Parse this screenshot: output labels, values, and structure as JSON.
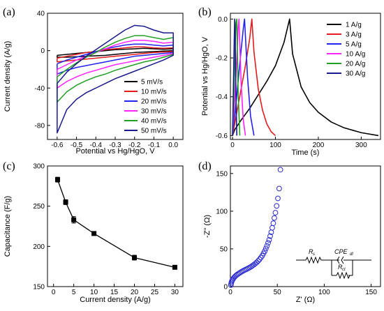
{
  "chart_data": [
    {
      "panel": "(a)",
      "type": "line",
      "xlabel": "Potential vs Hg/HgO, V",
      "ylabel": "Current density (A/g)",
      "xlim": [
        -0.65,
        0.05
      ],
      "ylim": [
        -95,
        40
      ],
      "xticks": [
        "-0.6",
        "-0.5",
        "-0.4",
        "-0.3",
        "-0.2",
        "-0.1",
        "0.0"
      ],
      "yticks": [
        "40",
        "0",
        "-40",
        "-80"
      ],
      "legend": "bottom-right",
      "x_grid": [
        -0.6,
        -0.55,
        -0.5,
        -0.45,
        -0.4,
        -0.35,
        -0.3,
        -0.25,
        -0.2,
        -0.15,
        -0.1,
        -0.05,
        0.0
      ],
      "series": [
        {
          "name": "5 mV/s",
          "color": "#000000",
          "anodic": [
            -5,
            -4,
            -3,
            -2,
            -1,
            0,
            1,
            1.5,
            2,
            2.5,
            2,
            1.5,
            2
          ],
          "cathodic": [
            -7,
            -7,
            -6.5,
            -6,
            -5.5,
            -5,
            -4,
            -3,
            -2,
            -1.5,
            -1,
            -0.5,
            0
          ]
        },
        {
          "name": "10 mV/s",
          "color": "#e41a1c",
          "anodic": [
            -8,
            -6,
            -4,
            -2,
            -1,
            1,
            2,
            3,
            4,
            4,
            3,
            2.5,
            3
          ],
          "cathodic": [
            -12,
            -11,
            -10,
            -9,
            -8,
            -7,
            -6,
            -5,
            -4,
            -3,
            -2,
            -1.5,
            -1
          ]
        },
        {
          "name": "20 mV/s",
          "color": "#2222ee",
          "anodic": [
            -14,
            -10,
            -7,
            -4,
            -1,
            2,
            4,
            6,
            7,
            7,
            6,
            5,
            6
          ],
          "cathodic": [
            -25,
            -21,
            -18,
            -16,
            -14,
            -12,
            -10,
            -8,
            -6,
            -5,
            -4,
            -3,
            -2
          ]
        },
        {
          "name": "30 mV/s",
          "color": "#ff22ff",
          "anodic": [
            -20,
            -15,
            -10,
            -6,
            -2,
            2,
            6,
            9,
            11,
            11,
            10,
            8,
            9
          ],
          "cathodic": [
            -40,
            -33,
            -28,
            -24,
            -21,
            -18,
            -15,
            -13,
            -11,
            -9,
            -7,
            -5,
            -3
          ]
        },
        {
          "name": "40 mV/s",
          "color": "#22a022",
          "anodic": [
            -28,
            -20,
            -13,
            -7,
            -2,
            4,
            9,
            13,
            16,
            16,
            14,
            12,
            14
          ],
          "cathodic": [
            -55,
            -44,
            -37,
            -32,
            -28,
            -25,
            -21,
            -18,
            -15,
            -12,
            -10,
            -7,
            -4
          ]
        },
        {
          "name": "50 mV/s",
          "color": "#1a1a8c",
          "anodic": [
            -35,
            -23,
            -14,
            -6,
            1,
            8,
            15,
            22,
            27,
            26,
            22,
            19,
            19
          ],
          "cathodic": [
            -88,
            -63,
            -52,
            -45,
            -40,
            -35,
            -30,
            -26,
            -22,
            -18,
            -14,
            -10,
            -5
          ]
        }
      ]
    },
    {
      "panel": "(b)",
      "type": "line",
      "xlabel": "Time (s)",
      "ylabel": "Potential vs Hg/HgO, V",
      "xlim": [
        -5,
        345
      ],
      "ylim": [
        -0.62,
        0.03
      ],
      "xticks": [
        "0",
        "100",
        "200",
        "300"
      ],
      "yticks": [
        "0.0",
        "-0.2",
        "-0.4",
        "-0.6"
      ],
      "legend": "top-right",
      "series": [
        {
          "name": "1 A/g",
          "color": "#000000",
          "x": [
            0,
            5,
            20,
            40,
            60,
            80,
            100,
            120,
            133,
            140,
            160,
            180,
            200,
            230,
            260,
            300,
            340
          ],
          "y": [
            -0.6,
            -0.57,
            -0.52,
            -0.46,
            -0.39,
            -0.32,
            -0.24,
            -0.12,
            0.0,
            -0.18,
            -0.35,
            -0.43,
            -0.48,
            -0.53,
            -0.56,
            -0.585,
            -0.6
          ]
        },
        {
          "name": "3 A/g",
          "color": "#e41a1c",
          "x": [
            0,
            10,
            20,
            30,
            40,
            45,
            50,
            60,
            70,
            80,
            90,
            100
          ],
          "y": [
            -0.6,
            -0.48,
            -0.36,
            -0.24,
            -0.1,
            0.0,
            -0.17,
            -0.36,
            -0.47,
            -0.54,
            -0.58,
            -0.6
          ]
        },
        {
          "name": "5 A/g",
          "color": "#2222ee",
          "x": [
            0,
            7,
            13,
            20,
            25,
            28,
            35,
            42,
            50
          ],
          "y": [
            -0.6,
            -0.46,
            -0.32,
            -0.16,
            -0.05,
            0.0,
            -0.3,
            -0.5,
            -0.6
          ]
        },
        {
          "name": "10 A/g",
          "color": "#ff22ff",
          "x": [
            0,
            5,
            10,
            13,
            15,
            20,
            25,
            30
          ],
          "y": [
            -0.6,
            -0.42,
            -0.2,
            -0.05,
            0.0,
            -0.33,
            -0.52,
            -0.6
          ]
        },
        {
          "name": "20 A/g",
          "color": "#22a022",
          "x": [
            0,
            3,
            6,
            8,
            10,
            13,
            17
          ],
          "y": [
            -0.6,
            -0.4,
            -0.15,
            -0.02,
            0.0,
            -0.38,
            -0.6
          ]
        },
        {
          "name": "30 A/g",
          "color": "#1a1a8c",
          "x": [
            0,
            2,
            4,
            5,
            6,
            8,
            10
          ],
          "y": [
            -0.6,
            -0.35,
            -0.1,
            0.0,
            -0.05,
            -0.4,
            -0.6
          ]
        }
      ]
    },
    {
      "panel": "(c)",
      "type": "line",
      "xlabel": "Current density (A/g)",
      "ylabel": "Capacitance (F/g)",
      "xlim": [
        -1.5,
        32
      ],
      "ylim": [
        150,
        300
      ],
      "xticks": [
        "0",
        "5",
        "10",
        "15",
        "20",
        "25",
        "30"
      ],
      "yticks": [
        "150",
        "200",
        "250",
        "300"
      ],
      "series": [
        {
          "name": "",
          "color": "#000000",
          "x": [
            1,
            3,
            5,
            10,
            20,
            30
          ],
          "y": [
            283,
            255,
            233,
            216,
            186,
            174
          ],
          "err": [
            3,
            3,
            4,
            2,
            3,
            2
          ]
        }
      ]
    },
    {
      "panel": "(d)",
      "type": "scatter",
      "xlabel": "Z' (Ω)",
      "ylabel": "-Z'' (Ω)",
      "xlim": [
        0,
        160
      ],
      "ylim": [
        0,
        160
      ],
      "xticks": [
        "0",
        "50",
        "100",
        "150"
      ],
      "yticks": [
        "0",
        "50",
        "100",
        "150"
      ],
      "circuit_labels": [
        "R",
        "s",
        "CPE",
        "dl",
        "R",
        "ct"
      ],
      "series": [
        {
          "name": "",
          "color": "#2a2ad4",
          "x": [
            0.5,
            0.8,
            1.2,
            1.8,
            2.5,
            3.3,
            4.2,
            5.2,
            6.3,
            7.5,
            8.8,
            10.2,
            11.6,
            13.0,
            14.5,
            16.0,
            17.5,
            19.0,
            20.5,
            22.0,
            23.5,
            25.0,
            26.5,
            28.0,
            29.5,
            31.0,
            32.5,
            34.0,
            35.3,
            36.6,
            37.8,
            39.0,
            40.2,
            41.3,
            42.4,
            43.5,
            44.6,
            45.7,
            46.8,
            48.0,
            49.3,
            50.6,
            52.0,
            53.3
          ],
          "y": [
            2,
            4,
            6,
            8,
            9.5,
            11,
            12.5,
            13.8,
            15,
            16.2,
            17.3,
            18.4,
            19.5,
            20.5,
            21.5,
            22.4,
            23.3,
            24.3,
            25.3,
            26.5,
            27.7,
            29.0,
            30.5,
            32,
            34,
            36,
            38.5,
            41,
            44,
            47,
            50.5,
            54,
            58,
            62,
            67,
            72,
            78,
            84,
            91,
            98,
            107,
            117,
            130,
            155
          ]
        }
      ]
    }
  ]
}
